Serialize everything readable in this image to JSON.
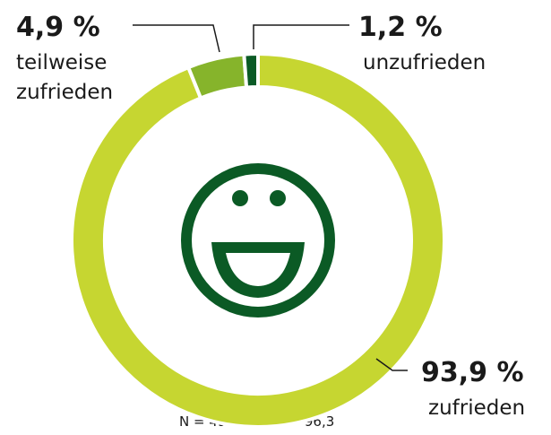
{
  "chart_data": {
    "type": "donut",
    "categories": [
      "zufrieden",
      "teilweise zufrieden",
      "unzufrieden"
    ],
    "values": [
      93.9,
      4.9,
      1.2
    ],
    "value_labels": [
      "93,9 %",
      "4,9 %",
      "1,2 %"
    ],
    "colors": [
      "#c6d631",
      "#86b42b",
      "#0b5a25"
    ],
    "annotations": [
      "N = 490",
      "MW = 96,3"
    ]
  }
}
